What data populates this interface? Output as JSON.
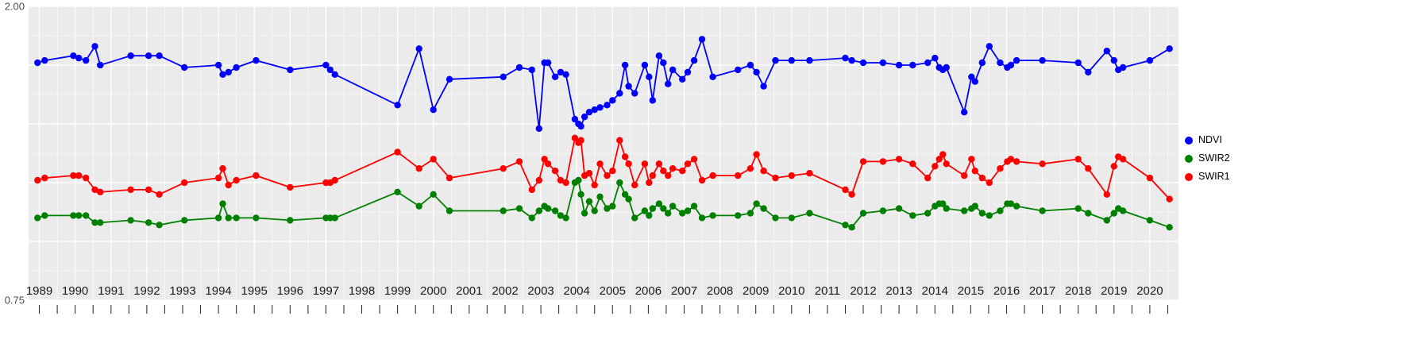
{
  "figure": {
    "background": "#ffffff",
    "panel_background": "#ebebeb",
    "gridline_color": "#ffffff",
    "axis_text_color": "#4d4d4d",
    "x_tick_label_color": "#1a1a1a",
    "tick_mark_color": "#333333"
  },
  "legend": {
    "position": "right",
    "items": [
      "NDVI",
      "SWIR2",
      "SWIR1"
    ]
  },
  "chart_data": {
    "type": "line",
    "title": "",
    "xlabel": "",
    "ylabel": "",
    "grid": true,
    "legend_position": "right",
    "xlim": [
      1988.7,
      2020.8
    ],
    "ylim": [
      0.75,
      2.0
    ],
    "y_major_step": 0.25,
    "y_minor_step": 0.125,
    "x_major_step": 1,
    "x_minor_step": 0.5,
    "y_axis_labels": [
      {
        "label": "2.00",
        "value": 2.0
      },
      {
        "label": "0.75",
        "value": 0.75
      }
    ],
    "x_tick_years": [
      1989,
      1990,
      1991,
      1992,
      1993,
      1994,
      1995,
      1996,
      1997,
      1998,
      1999,
      2000,
      2001,
      2002,
      2003,
      2004,
      2005,
      2006,
      2007,
      2008,
      2009,
      2010,
      2011,
      2012,
      2013,
      2014,
      2015,
      2016,
      2017,
      2018,
      2019,
      2020
    ],
    "x": [
      1988.95,
      1989.15,
      1989.95,
      1990.1,
      1990.3,
      1990.55,
      1990.7,
      1991.55,
      1992.05,
      1992.35,
      1993.05,
      1994.0,
      1994.12,
      1994.28,
      1994.5,
      1995.05,
      1996.0,
      1997.0,
      1997.12,
      1997.25,
      1999.0,
      1999.6,
      2000.0,
      2000.45,
      2001.95,
      2002.4,
      2002.75,
      2002.95,
      2003.1,
      2003.2,
      2003.4,
      2003.55,
      2003.7,
      2003.95,
      2004.05,
      2004.12,
      2004.22,
      2004.35,
      2004.5,
      2004.65,
      2004.85,
      2005.0,
      2005.2,
      2005.35,
      2005.45,
      2005.62,
      2005.9,
      2006.02,
      2006.12,
      2006.3,
      2006.42,
      2006.55,
      2006.68,
      2006.95,
      2007.1,
      2007.28,
      2007.5,
      2007.8,
      2008.5,
      2008.85,
      2009.02,
      2009.22,
      2009.55,
      2010.0,
      2010.5,
      2011.5,
      2011.68,
      2012.0,
      2012.55,
      2013.0,
      2013.38,
      2013.8,
      2014.0,
      2014.12,
      2014.22,
      2014.32,
      2014.82,
      2015.02,
      2015.12,
      2015.32,
      2015.52,
      2015.82,
      2016.02,
      2016.12,
      2016.28,
      2017.0,
      2018.0,
      2018.28,
      2018.8,
      2019.0,
      2019.12,
      2019.25,
      2020.0,
      2020.55
    ],
    "series": [
      {
        "name": "NDVI",
        "color": "#0000ff",
        "values": [
          1.76,
          1.77,
          1.79,
          1.78,
          1.77,
          1.83,
          1.75,
          1.79,
          1.79,
          1.79,
          1.74,
          1.75,
          1.71,
          1.72,
          1.74,
          1.77,
          1.73,
          1.75,
          1.73,
          1.71,
          1.58,
          1.82,
          1.56,
          1.69,
          1.7,
          1.74,
          1.73,
          1.48,
          1.76,
          1.76,
          1.7,
          1.72,
          1.71,
          1.52,
          1.5,
          1.49,
          1.53,
          1.55,
          1.56,
          1.57,
          1.58,
          1.6,
          1.63,
          1.75,
          1.66,
          1.63,
          1.75,
          1.7,
          1.6,
          1.79,
          1.76,
          1.67,
          1.73,
          1.69,
          1.72,
          1.77,
          1.86,
          1.7,
          1.73,
          1.75,
          1.72,
          1.66,
          1.77,
          1.77,
          1.77,
          1.78,
          1.77,
          1.76,
          1.76,
          1.75,
          1.75,
          1.76,
          1.78,
          1.74,
          1.73,
          1.74,
          1.55,
          1.7,
          1.68,
          1.76,
          1.83,
          1.76,
          1.74,
          1.75,
          1.77,
          1.77,
          1.76,
          1.72,
          1.81,
          1.77,
          1.73,
          1.74,
          1.77,
          1.82
        ]
      },
      {
        "name": "SWIR2",
        "color": "#008000",
        "values": [
          1.1,
          1.11,
          1.11,
          1.11,
          1.11,
          1.08,
          1.08,
          1.09,
          1.08,
          1.07,
          1.09,
          1.1,
          1.16,
          1.1,
          1.1,
          1.1,
          1.09,
          1.1,
          1.1,
          1.1,
          1.21,
          1.15,
          1.2,
          1.13,
          1.13,
          1.14,
          1.1,
          1.13,
          1.15,
          1.14,
          1.13,
          1.11,
          1.1,
          1.25,
          1.26,
          1.2,
          1.12,
          1.17,
          1.13,
          1.19,
          1.14,
          1.15,
          1.25,
          1.2,
          1.18,
          1.1,
          1.13,
          1.11,
          1.14,
          1.16,
          1.14,
          1.12,
          1.15,
          1.12,
          1.13,
          1.15,
          1.1,
          1.11,
          1.11,
          1.12,
          1.16,
          1.14,
          1.1,
          1.1,
          1.12,
          1.07,
          1.06,
          1.12,
          1.13,
          1.14,
          1.11,
          1.12,
          1.15,
          1.16,
          1.16,
          1.14,
          1.13,
          1.14,
          1.15,
          1.12,
          1.11,
          1.13,
          1.16,
          1.16,
          1.15,
          1.13,
          1.14,
          1.12,
          1.09,
          1.12,
          1.14,
          1.13,
          1.09,
          1.06
        ]
      },
      {
        "name": "SWIR1",
        "color": "#ff0000",
        "values": [
          1.26,
          1.27,
          1.28,
          1.28,
          1.27,
          1.22,
          1.21,
          1.22,
          1.22,
          1.2,
          1.25,
          1.27,
          1.31,
          1.24,
          1.26,
          1.28,
          1.23,
          1.25,
          1.25,
          1.26,
          1.38,
          1.31,
          1.35,
          1.27,
          1.31,
          1.34,
          1.22,
          1.26,
          1.35,
          1.33,
          1.3,
          1.26,
          1.25,
          1.44,
          1.42,
          1.43,
          1.28,
          1.29,
          1.24,
          1.33,
          1.28,
          1.3,
          1.43,
          1.36,
          1.33,
          1.24,
          1.33,
          1.25,
          1.28,
          1.33,
          1.3,
          1.28,
          1.31,
          1.3,
          1.33,
          1.35,
          1.26,
          1.28,
          1.28,
          1.31,
          1.37,
          1.3,
          1.27,
          1.28,
          1.29,
          1.22,
          1.2,
          1.34,
          1.34,
          1.35,
          1.33,
          1.27,
          1.32,
          1.35,
          1.37,
          1.33,
          1.28,
          1.35,
          1.3,
          1.27,
          1.25,
          1.31,
          1.34,
          1.35,
          1.34,
          1.33,
          1.35,
          1.31,
          1.2,
          1.32,
          1.36,
          1.35,
          1.27,
          1.18
        ]
      }
    ]
  }
}
